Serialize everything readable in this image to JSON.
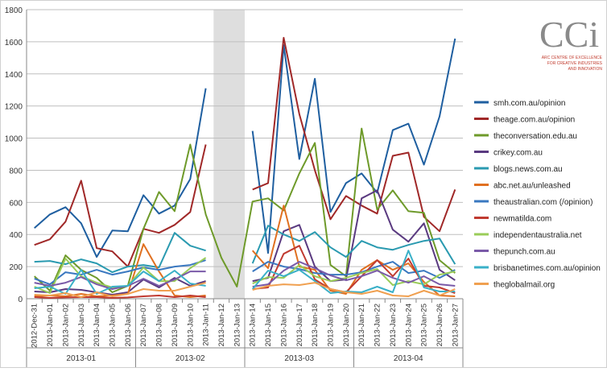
{
  "logo": {
    "mark": "CCi",
    "line1": "ARC CENTRE OF EXCELLENCE",
    "line2": "FOR CREATIVE INDUSTRIES",
    "line3": "AND INNOVATION",
    "accent": "#c0392b"
  },
  "chart_data": {
    "type": "line",
    "ylim": [
      0,
      1800
    ],
    "yticks": [
      0,
      200,
      400,
      600,
      800,
      1000,
      1200,
      1400,
      1600,
      1800
    ],
    "grid": true,
    "legend": "right",
    "shaded_range": [
      "2013-Jan-12",
      "2013-Jan-13"
    ],
    "x": [
      "2012-Dec-31",
      "2013-Jan-01",
      "2013-Jan-02",
      "2013-Jan-03",
      "2013-Jan-04",
      "2013-Jan-05",
      "2013-Jan-06",
      "2013-Jan-07",
      "2013-Jan-08",
      "2013-Jan-09",
      "2013-Jan-10",
      "2013-Jan-11",
      "2013-Jan-12",
      "2013-Jan-13",
      "2013-Jan-14",
      "2013-Jan-15",
      "2013-Jan-16",
      "2013-Jan-17",
      "2013-Jan-18",
      "2013-Jan-19",
      "2013-Jan-20",
      "2013-Jan-21",
      "2013-Jan-22",
      "2013-Jan-23",
      "2013-Jan-24",
      "2013-Jan-25",
      "2013-Jan-26",
      "2013-Jan-27"
    ],
    "groups": [
      {
        "label": "2013-01",
        "from": 0,
        "to": 6
      },
      {
        "label": "2013-02",
        "from": 7,
        "to": 13
      },
      {
        "label": "2013-03",
        "from": 14,
        "to": 20
      },
      {
        "label": "2013-04",
        "from": 21,
        "to": 27
      }
    ],
    "series": [
      {
        "name": "smh.com.au/opinion",
        "color": "#1f5fa0",
        "values": [
          440,
          525,
          570,
          470,
          260,
          425,
          420,
          645,
          530,
          580,
          745,
          1310,
          null,
          null,
          1045,
          285,
          1580,
          870,
          1370,
          540,
          720,
          780,
          660,
          1050,
          1090,
          835,
          1135,
          1620
        ]
      },
      {
        "name": "theage.com.au/opinion",
        "color": "#a02828",
        "values": [
          335,
          370,
          480,
          735,
          315,
          295,
          200,
          435,
          410,
          460,
          540,
          960,
          null,
          null,
          680,
          720,
          1625,
          1150,
          800,
          495,
          640,
          580,
          530,
          890,
          910,
          510,
          420,
          680
        ]
      },
      {
        "name": "theconversation.edu.au",
        "color": "#6e9a2a",
        "values": [
          140,
          50,
          270,
          180,
          130,
          40,
          80,
          435,
          665,
          545,
          960,
          525,
          255,
          75,
          605,
          625,
          550,
          780,
          970,
          210,
          140,
          1060,
          555,
          675,
          545,
          535,
          240,
          160
        ]
      },
      {
        "name": "crikey.com.au",
        "color": "#5a3a80",
        "values": [
          45,
          40,
          60,
          55,
          40,
          25,
          40,
          120,
          70,
          130,
          80,
          110,
          null,
          null,
          110,
          130,
          420,
          460,
          200,
          110,
          120,
          625,
          675,
          430,
          355,
          470,
          180,
          115
        ]
      },
      {
        "name": "blogs.news.com.au",
        "color": "#2a9ab0",
        "values": [
          230,
          235,
          215,
          245,
          220,
          165,
          200,
          210,
          195,
          410,
          330,
          300,
          null,
          null,
          220,
          455,
          400,
          360,
          415,
          320,
          260,
          360,
          320,
          305,
          335,
          360,
          375,
          215
        ]
      },
      {
        "name": "abc.net.au/unleashed",
        "color": "#e07020",
        "values": [
          15,
          20,
          15,
          30,
          15,
          20,
          30,
          340,
          170,
          20,
          10,
          20,
          null,
          null,
          300,
          190,
          580,
          200,
          180,
          50,
          30,
          180,
          240,
          180,
          220,
          105,
          20,
          15
        ]
      },
      {
        "name": "theaustralian.com (/opinion)",
        "color": "#3a78c0",
        "values": [
          125,
          90,
          165,
          150,
          180,
          150,
          170,
          195,
          180,
          200,
          210,
          240,
          null,
          null,
          170,
          230,
          200,
          185,
          160,
          150,
          150,
          165,
          200,
          230,
          160,
          175,
          130,
          180
        ]
      },
      {
        "name": "newmatilda.com",
        "color": "#c03a30",
        "values": [
          10,
          5,
          8,
          10,
          10,
          5,
          8,
          15,
          20,
          10,
          20,
          10,
          null,
          null,
          60,
          70,
          280,
          330,
          120,
          60,
          40,
          140,
          240,
          140,
          250,
          80,
          70,
          35
        ]
      },
      {
        "name": "independentaustralia.net",
        "color": "#9acc58",
        "values": [
          75,
          35,
          250,
          140,
          100,
          70,
          80,
          195,
          110,
          110,
          190,
          255,
          null,
          null,
          95,
          135,
          130,
          210,
          140,
          110,
          130,
          160,
          185,
          85,
          110,
          90,
          150,
          170
        ]
      },
      {
        "name": "thepunch.com.au",
        "color": "#7a5aa8",
        "values": [
          100,
          80,
          100,
          135,
          90,
          60,
          80,
          125,
          80,
          120,
          170,
          170,
          null,
          null,
          75,
          90,
          175,
          230,
          190,
          145,
          115,
          140,
          175,
          130,
          100,
          140,
          90,
          80
        ]
      },
      {
        "name": "brisbanetimes.com.au/opinion",
        "color": "#3ab0c8",
        "values": [
          65,
          75,
          30,
          180,
          30,
          75,
          80,
          170,
          110,
          175,
          95,
          80,
          null,
          null,
          60,
          175,
          140,
          180,
          110,
          35,
          45,
          40,
          75,
          40,
          300,
          70,
          45,
          45
        ]
      },
      {
        "name": "theglobalmail.org",
        "color": "#f0a050",
        "values": [
          25,
          20,
          35,
          10,
          40,
          15,
          30,
          60,
          50,
          50,
          75,
          100,
          null,
          null,
          55,
          80,
          90,
          85,
          100,
          60,
          40,
          30,
          50,
          20,
          15,
          50,
          20,
          60
        ]
      }
    ]
  }
}
